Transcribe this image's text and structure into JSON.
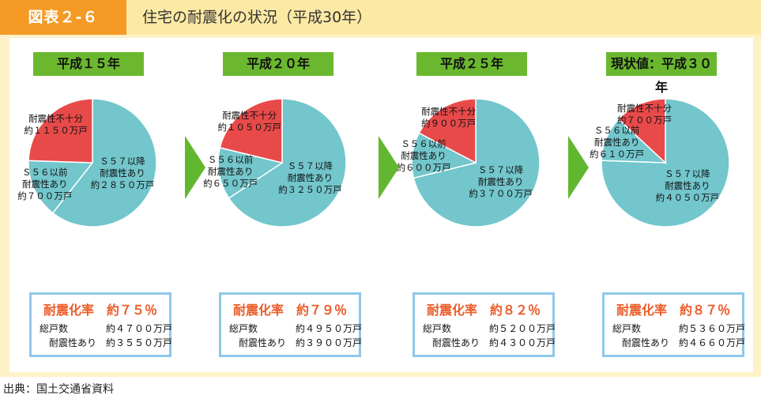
{
  "header": {
    "label": "図表２‐６",
    "title": "住宅の耐震化の状況（平成30年）"
  },
  "footer": {
    "source": "出典：国土交通省資料"
  },
  "colors": {
    "accent_orange": "#f49a25",
    "year_green": "#6bb82f",
    "red_slice": "#e84a4a",
    "teal_slice": "#72c6cc",
    "rate_orange": "#ec5c28",
    "box_blue": "#8fc8ea"
  },
  "chart_data": [
    {
      "type": "pie",
      "title": "平成１５年",
      "slices": [
        {
          "label": "Ｓ５７以降\n耐震性あり\n約２８５０万戸",
          "value": 2850,
          "color": "#72c6cc"
        },
        {
          "label": "Ｓ５６以前\n耐震性あり\n約７００万戸",
          "value": 700,
          "color": "#72c6cc"
        },
        {
          "label": "耐震性不十分\n約１１５０万戸",
          "value": 1150,
          "color": "#e84a4a"
        }
      ],
      "rate_label": "耐震化率",
      "rate_value": "約７５％",
      "total_label": "総戸数",
      "total_value": "約４７００万戸",
      "resistant_label": "耐震性あり",
      "resistant_value": "約３５５０万戸"
    },
    {
      "type": "pie",
      "title": "平成２０年",
      "slices": [
        {
          "label": "Ｓ５７以降\n耐震性あり\n約３２５０万戸",
          "value": 3250,
          "color": "#72c6cc"
        },
        {
          "label": "Ｓ５６以前\n耐震性あり\n約６５０万戸",
          "value": 650,
          "color": "#72c6cc"
        },
        {
          "label": "耐震性不十分\n約１０５０万戸",
          "value": 1050,
          "color": "#e84a4a"
        }
      ],
      "rate_label": "耐震化率",
      "rate_value": "約７９％",
      "total_label": "総戸数",
      "total_value": "約４９５０万戸",
      "resistant_label": "耐震性あり",
      "resistant_value": "約３９００万戸"
    },
    {
      "type": "pie",
      "title": "平成２５年",
      "slices": [
        {
          "label": "Ｓ５７以降\n耐震性あり\n約３７００万戸",
          "value": 3700,
          "color": "#72c6cc"
        },
        {
          "label": "Ｓ５６以前\n耐震性あり\n約６００万戸",
          "value": 600,
          "color": "#72c6cc"
        },
        {
          "label": "耐震性不十分\n約９００万戸",
          "value": 900,
          "color": "#e84a4a"
        }
      ],
      "rate_label": "耐震化率",
      "rate_value": "約８２％",
      "total_label": "総戸数",
      "total_value": "約５２００万戸",
      "resistant_label": "耐震性あり",
      "resistant_value": "約４３００万戸"
    },
    {
      "type": "pie",
      "title": "現状値：平成３０年",
      "slices": [
        {
          "label": "Ｓ５７以降\n耐震性あり\n約４０５０万戸",
          "value": 4050,
          "color": "#72c6cc"
        },
        {
          "label": "Ｓ５６以前\n耐震性あり\n約６１０万戸",
          "value": 610,
          "color": "#72c6cc"
        },
        {
          "label": "耐震性不十分\n約７００万戸",
          "value": 700,
          "color": "#e84a4a"
        }
      ],
      "rate_label": "耐震化率",
      "rate_value": "約８７％",
      "total_label": "総戸数",
      "total_value": "約５３６０万戸",
      "resistant_label": "耐震性あり",
      "resistant_value": "約４６６０万戸"
    }
  ]
}
